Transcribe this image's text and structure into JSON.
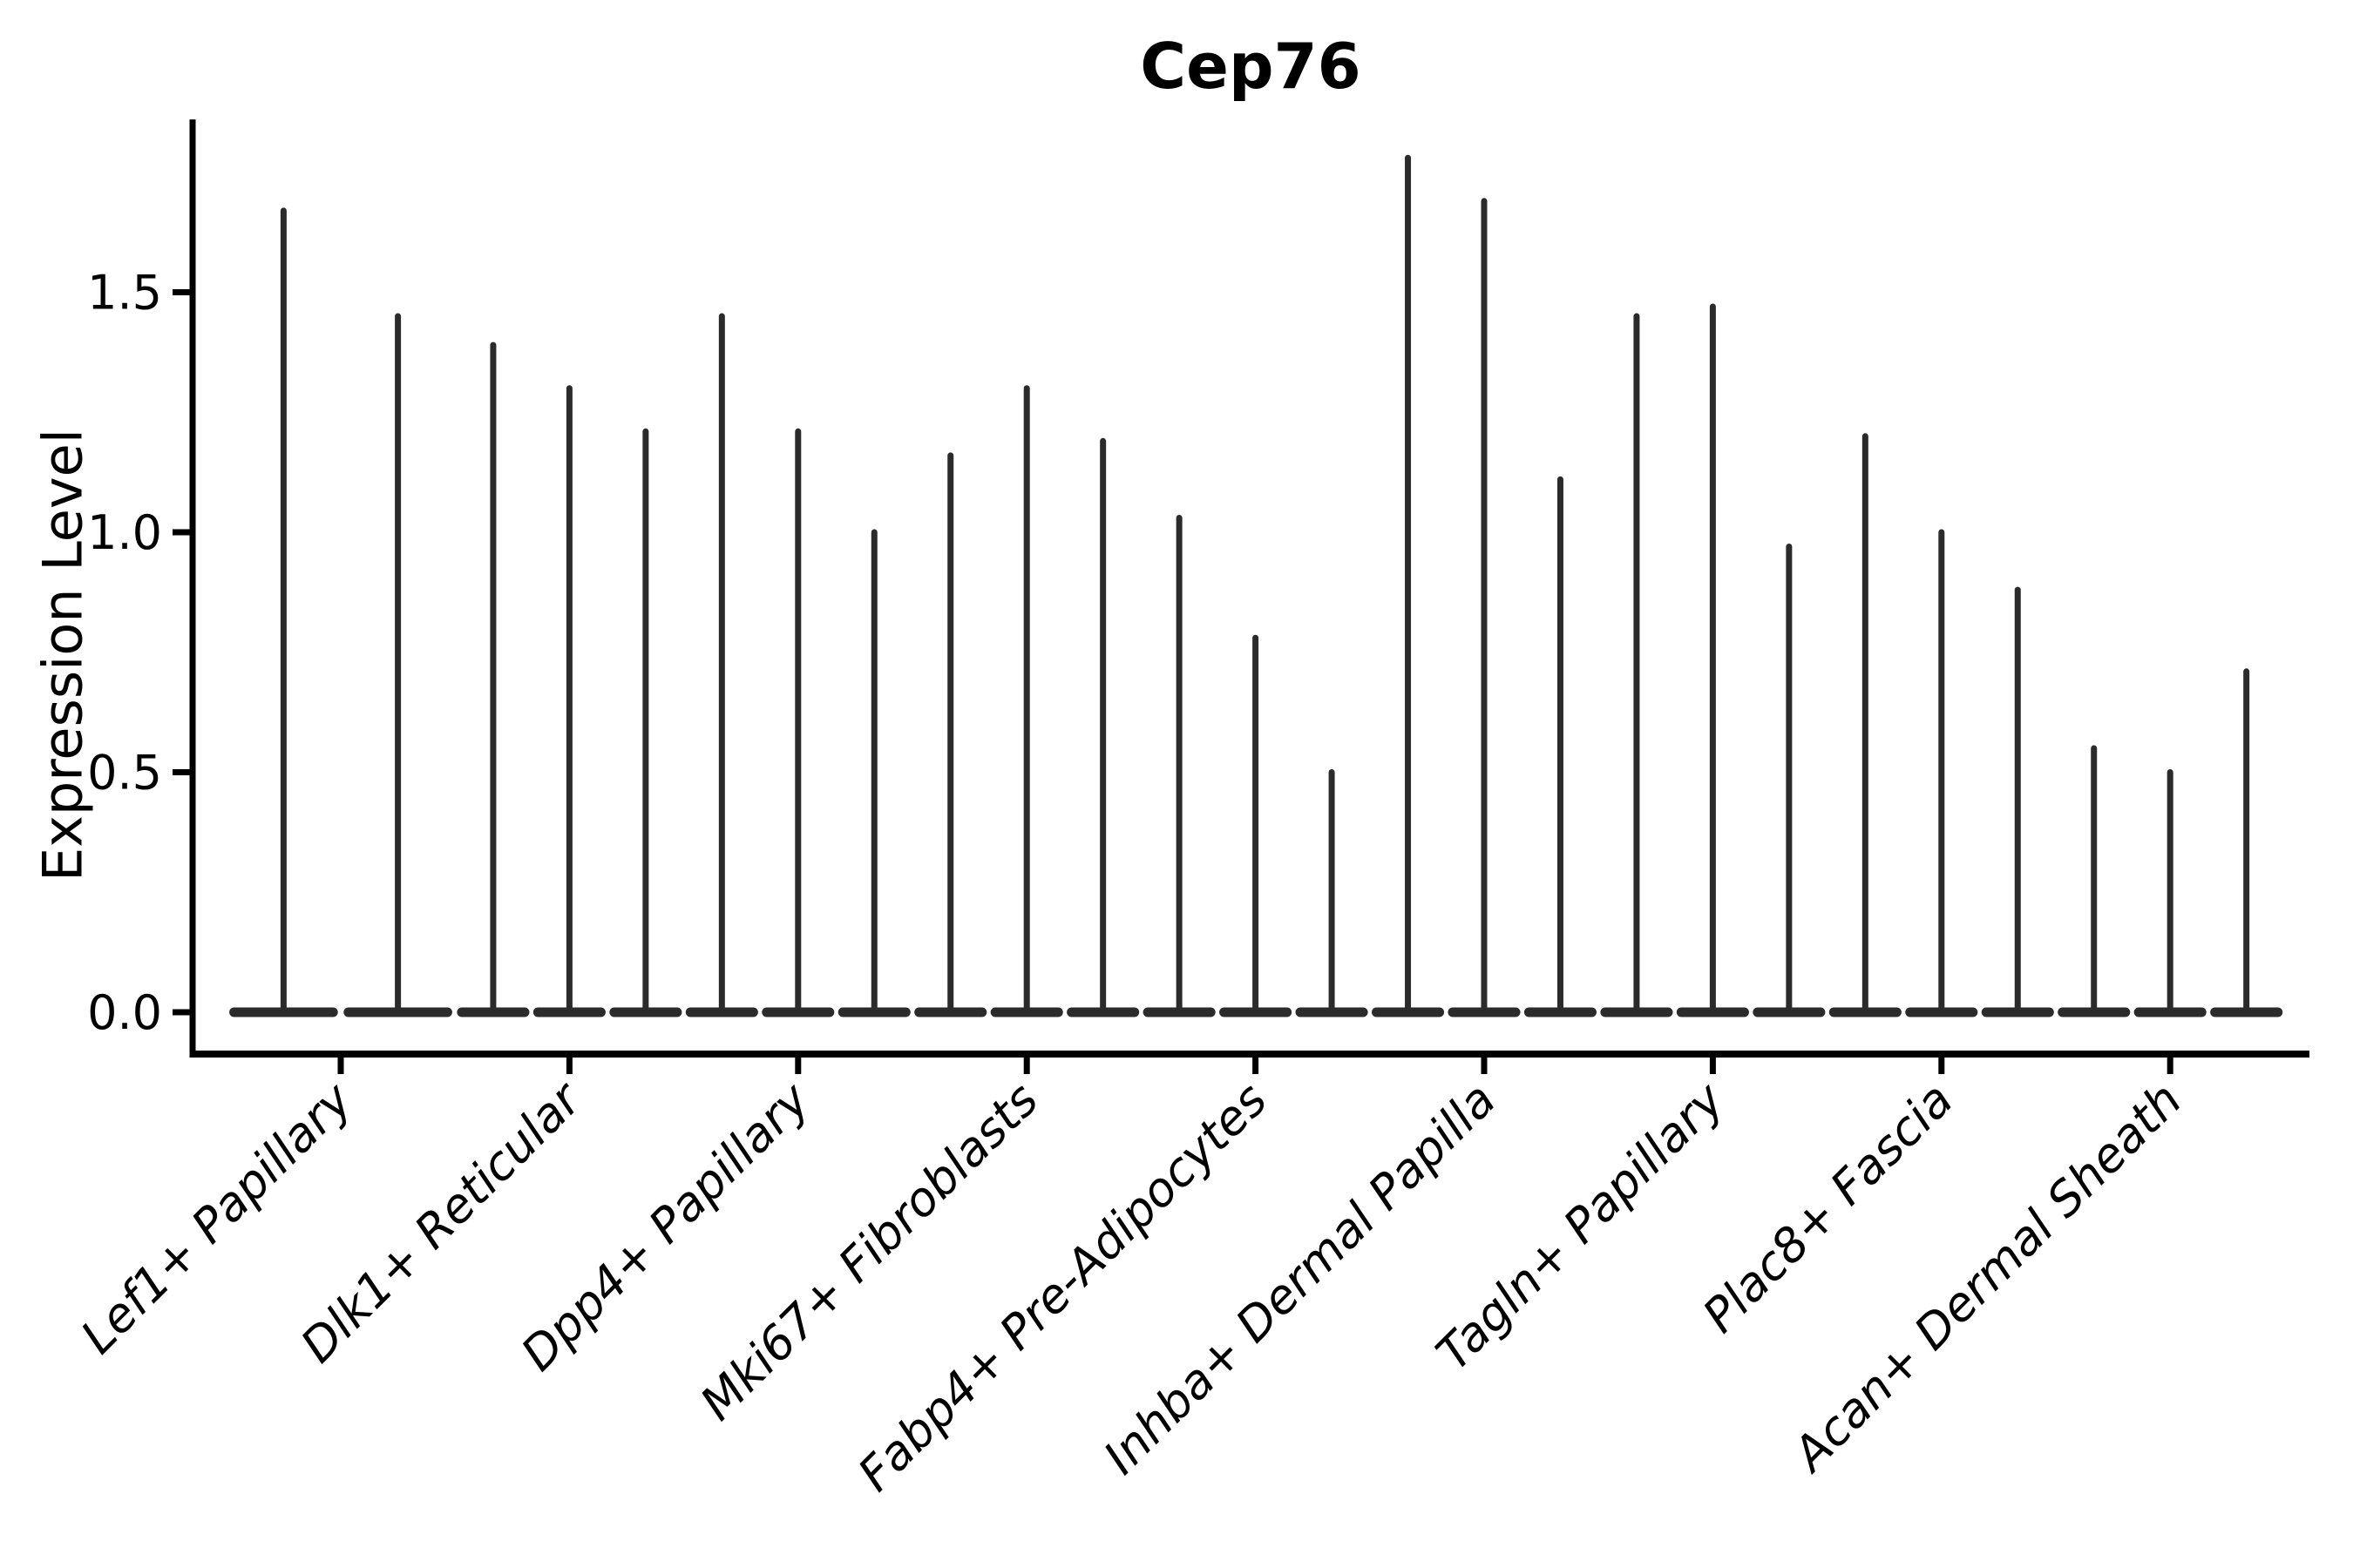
{
  "figure": {
    "title": "Cep76",
    "background_color": "#ffffff"
  },
  "chart_data": {
    "type": "violin",
    "title": "Cep76",
    "xlabel": "",
    "ylabel": "Expression Level",
    "ylim": [
      -0.09,
      1.86
    ],
    "yticks": [
      0.0,
      0.5,
      1.0,
      1.5
    ],
    "ytick_labels": [
      "0.0",
      "0.5",
      "1.0",
      "1.5"
    ],
    "grid": false,
    "legend": null,
    "x_tick_rotation_degrees": 45,
    "categories": [
      "Lef1+ Papillary",
      "Dlk1+ Reticular",
      "Dpp4+ Papillary",
      "Mki67+ Fibroblasts",
      "Fabp4+ Pre-Adipocytes",
      "Inhba+ Dermal Papilla",
      "Tagln+ Papillary",
      "Plac8+ Fascia",
      "Acan+ Dermal Sheath"
    ],
    "groups": [
      {
        "category": "Lef1+ Papillary",
        "violin_maxima": [
          1.67,
          1.45
        ],
        "bulk_value": 0.0
      },
      {
        "category": "Dlk1+ Reticular",
        "violin_maxima": [
          1.39,
          1.3,
          1.21
        ],
        "bulk_value": 0.0
      },
      {
        "category": "Dpp4+ Papillary",
        "violin_maxima": [
          1.45,
          1.21,
          1.0
        ],
        "bulk_value": 0.0
      },
      {
        "category": "Mki67+ Fibroblasts",
        "violin_maxima": [
          1.16,
          1.3,
          1.19
        ],
        "bulk_value": 0.0
      },
      {
        "category": "Fabp4+ Pre-Adipocytes",
        "violin_maxima": [
          1.03,
          0.78,
          0.5
        ],
        "bulk_value": 0.0
      },
      {
        "category": "Inhba+ Dermal Papilla",
        "violin_maxima": [
          1.78,
          1.69,
          1.11
        ],
        "bulk_value": 0.0
      },
      {
        "category": "Tagln+ Papillary",
        "violin_maxima": [
          1.45,
          1.47,
          0.97
        ],
        "bulk_value": 0.0
      },
      {
        "category": "Plac8+ Fascia",
        "violin_maxima": [
          1.2,
          1.0,
          0.88
        ],
        "bulk_value": 0.0
      },
      {
        "category": "Acan+ Dermal Sheath",
        "violin_maxima": [
          0.55,
          0.5,
          0.71
        ],
        "bulk_value": 0.0
      }
    ],
    "colors": {
      "violin": "#2b2b2b",
      "axis": "#000000",
      "text": "#000000",
      "background": "#ffffff"
    }
  }
}
